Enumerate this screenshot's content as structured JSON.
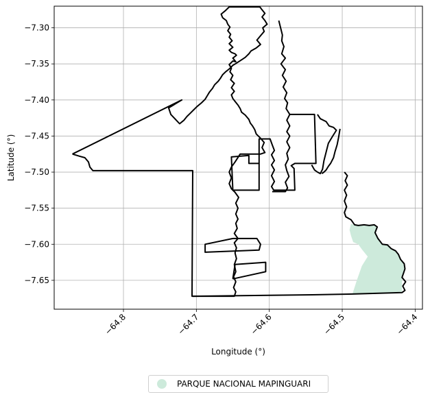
{
  "chart_data": {
    "type": "map",
    "xlabel": "Longitude (°)",
    "ylabel": "Latitude (°)",
    "xlim": [
      -64.895,
      -64.39
    ],
    "ylim": [
      -7.69,
      -7.27
    ],
    "xticks": [
      -64.8,
      -64.7,
      -64.6,
      -64.5,
      -64.4
    ],
    "xtick_labels": [
      "−64.8",
      "−64.7",
      "−64.6",
      "−64.5",
      "−64.4"
    ],
    "yticks": [
      -7.3,
      -7.35,
      -7.4,
      -7.45,
      -7.5,
      -7.55,
      -7.6,
      -7.65
    ],
    "ytick_labels": [
      "−7.30",
      "−7.35",
      "−7.40",
      "−7.45",
      "−7.50",
      "−7.55",
      "−7.60",
      "−7.65"
    ],
    "grid": true,
    "legend_placement": "bottom-center",
    "legend": [
      {
        "label": "PARQUE NACIONAL MAPINGUARI",
        "color": "#cdeadb"
      }
    ],
    "boundary_color": "#000000",
    "fill_color": "#cdeadb",
    "boundary": [
      [
        -64.87,
        -7.475
      ],
      [
        -64.86,
        -7.478
      ],
      [
        -64.853,
        -7.48
      ],
      [
        -64.848,
        -7.486
      ],
      [
        -64.846,
        -7.493
      ],
      [
        -64.842,
        -7.498
      ],
      [
        -64.705,
        -7.498
      ],
      [
        -64.706,
        -7.672
      ],
      [
        -64.648,
        -7.672
      ],
      [
        -64.646,
        -7.666
      ],
      [
        -64.649,
        -7.66
      ],
      [
        -64.646,
        -7.652
      ],
      [
        -64.649,
        -7.645
      ],
      [
        -64.646,
        -7.638
      ],
      [
        -64.648,
        -7.628
      ],
      [
        -64.645,
        -7.62
      ],
      [
        -64.647,
        -7.612
      ],
      [
        -64.645,
        -7.605
      ],
      [
        -64.648,
        -7.598
      ],
      [
        -64.643,
        -7.592
      ],
      [
        -64.648,
        -7.585
      ],
      [
        -64.644,
        -7.578
      ],
      [
        -64.646,
        -7.571
      ],
      [
        -64.643,
        -7.565
      ],
      [
        -64.646,
        -7.558
      ],
      [
        -64.643,
        -7.55
      ],
      [
        -64.646,
        -7.543
      ],
      [
        -64.642,
        -7.535
      ],
      [
        -64.647,
        -7.528
      ],
      [
        -64.652,
        -7.523
      ],
      [
        -64.655,
        -7.516
      ],
      [
        -64.652,
        -7.508
      ],
      [
        -64.655,
        -7.5
      ],
      [
        -64.652,
        -7.493
      ],
      [
        -64.647,
        -7.486
      ],
      [
        -64.64,
        -7.475
      ],
      [
        -64.612,
        -7.475
      ],
      [
        -64.606,
        -7.473
      ],
      [
        -64.61,
        -7.466
      ],
      [
        -64.607,
        -7.459
      ],
      [
        -64.612,
        -7.453
      ],
      [
        -64.615,
        -7.45
      ],
      [
        -64.618,
        -7.447
      ],
      [
        -64.62,
        -7.441
      ],
      [
        -64.623,
        -7.436
      ],
      [
        -64.626,
        -7.432
      ],
      [
        -64.628,
        -7.427
      ],
      [
        -64.633,
        -7.421
      ],
      [
        -64.638,
        -7.417
      ],
      [
        -64.64,
        -7.412
      ],
      [
        -64.643,
        -7.407
      ],
      [
        -64.647,
        -7.402
      ],
      [
        -64.65,
        -7.398
      ],
      [
        -64.652,
        -7.393
      ],
      [
        -64.648,
        -7.388
      ],
      [
        -64.652,
        -7.383
      ],
      [
        -64.648,
        -7.377
      ],
      [
        -64.653,
        -7.372
      ],
      [
        -64.65,
        -7.366
      ],
      [
        -64.654,
        -7.361
      ],
      [
        -64.652,
        -7.356
      ],
      [
        -64.655,
        -7.351
      ],
      [
        -64.65,
        -7.346
      ],
      [
        -64.646,
        -7.347
      ],
      [
        -64.65,
        -7.342
      ],
      [
        -64.645,
        -7.338
      ],
      [
        -64.647,
        -7.336
      ],
      [
        -64.652,
        -7.334
      ],
      [
        -64.655,
        -7.331
      ],
      [
        -64.65,
        -7.327
      ],
      [
        -64.655,
        -7.322
      ],
      [
        -64.651,
        -7.318
      ],
      [
        -64.655,
        -7.313
      ],
      [
        -64.653,
        -7.309
      ],
      [
        -64.657,
        -7.304
      ],
      [
        -64.654,
        -7.299
      ],
      [
        -64.657,
        -7.295
      ],
      [
        -64.659,
        -7.29
      ],
      [
        -64.664,
        -7.286
      ],
      [
        -64.666,
        -7.281
      ],
      [
        -64.66,
        -7.276
      ],
      [
        -64.655,
        -7.271
      ],
      [
        -64.613,
        -7.271
      ],
      [
        -64.61,
        -7.275
      ],
      [
        -64.606,
        -7.28
      ],
      [
        -64.61,
        -7.285
      ],
      [
        -64.606,
        -7.29
      ],
      [
        -64.603,
        -7.295
      ],
      [
        -64.609,
        -7.3
      ],
      [
        -64.607,
        -7.305
      ],
      [
        -64.612,
        -7.311
      ],
      [
        -64.617,
        -7.317
      ],
      [
        -64.612,
        -7.323
      ],
      [
        -64.618,
        -7.328
      ],
      [
        -64.625,
        -7.332
      ],
      [
        -64.628,
        -7.336
      ],
      [
        -64.633,
        -7.341
      ],
      [
        -64.639,
        -7.345
      ],
      [
        -64.645,
        -7.349
      ],
      [
        -64.65,
        -7.352
      ],
      [
        -64.655,
        -7.357
      ],
      [
        -64.66,
        -7.361
      ],
      [
        -64.664,
        -7.365
      ],
      [
        -64.667,
        -7.37
      ],
      [
        -64.67,
        -7.374
      ],
      [
        -64.675,
        -7.379
      ],
      [
        -64.678,
        -7.384
      ],
      [
        -64.682,
        -7.389
      ],
      [
        -64.685,
        -7.394
      ],
      [
        -64.688,
        -7.399
      ],
      [
        -64.693,
        -7.404
      ],
      [
        -64.699,
        -7.409
      ],
      [
        -64.704,
        -7.414
      ],
      [
        -64.708,
        -7.418
      ],
      [
        -64.713,
        -7.423
      ],
      [
        -64.717,
        -7.428
      ],
      [
        -64.723,
        -7.433
      ],
      [
        -64.735,
        -7.42
      ],
      [
        -64.738,
        -7.411
      ],
      [
        -64.72,
        -7.4
      ],
      [
        -64.87,
        -7.475
      ]
    ],
    "inner_lines": [
      [
        [
          -64.587,
          -7.29
        ],
        [
          -64.582,
          -7.31
        ],
        [
          -64.583,
          -7.318
        ],
        [
          -64.58,
          -7.326
        ],
        [
          -64.583,
          -7.336
        ],
        [
          -64.578,
          -7.342
        ],
        [
          -64.584,
          -7.35
        ],
        [
          -64.578,
          -7.358
        ],
        [
          -64.582,
          -7.366
        ],
        [
          -64.577,
          -7.374
        ],
        [
          -64.581,
          -7.382
        ],
        [
          -64.576,
          -7.39
        ],
        [
          -64.579,
          -7.398
        ],
        [
          -64.575,
          -7.404
        ],
        [
          -64.577,
          -7.412
        ],
        [
          -64.572,
          -7.42
        ]
      ],
      [
        [
          -64.572,
          -7.42
        ],
        [
          -64.538,
          -7.42
        ],
        [
          -64.536,
          -7.488
        ],
        [
          -64.565,
          -7.488
        ],
        [
          -64.57,
          -7.491
        ],
        [
          -64.566,
          -7.495
        ],
        [
          -64.565,
          -7.525
        ],
        [
          -64.594,
          -7.525
        ],
        [
          -64.597,
          -7.52
        ],
        [
          -64.593,
          -7.513
        ],
        [
          -64.597,
          -7.505
        ],
        [
          -64.593,
          -7.497
        ],
        [
          -64.597,
          -7.49
        ],
        [
          -64.593,
          -7.484
        ],
        [
          -64.597,
          -7.476
        ],
        [
          -64.593,
          -7.47
        ],
        [
          -64.596,
          -7.462
        ],
        [
          -64.599,
          -7.454
        ],
        [
          -64.614,
          -7.454
        ],
        [
          -64.614,
          -7.525
        ],
        [
          -64.65,
          -7.525
        ],
        [
          -64.652,
          -7.479
        ],
        [
          -64.628,
          -7.477
        ],
        [
          -64.628,
          -7.488
        ],
        [
          -64.614,
          -7.488
        ]
      ],
      [
        [
          -64.572,
          -7.42
        ],
        [
          -64.576,
          -7.428
        ],
        [
          -64.572,
          -7.436
        ],
        [
          -64.576,
          -7.444
        ],
        [
          -64.572,
          -7.45
        ],
        [
          -64.576,
          -7.458
        ],
        [
          -64.572,
          -7.466
        ],
        [
          -64.576,
          -7.474
        ],
        [
          -64.574,
          -7.482
        ],
        [
          -64.578,
          -7.49
        ],
        [
          -64.576,
          -7.498
        ],
        [
          -64.573,
          -7.506
        ],
        [
          -64.578,
          -7.514
        ],
        [
          -64.575,
          -7.522
        ],
        [
          -64.578,
          -7.527
        ],
        [
          -64.596,
          -7.527
        ]
      ],
      [
        [
          -64.534,
          -7.42
        ],
        [
          -64.53,
          -7.426
        ],
        [
          -64.522,
          -7.43
        ],
        [
          -64.518,
          -7.436
        ],
        [
          -64.512,
          -7.438
        ],
        [
          -64.508,
          -7.442
        ],
        [
          -64.513,
          -7.45
        ],
        [
          -64.519,
          -7.46
        ],
        [
          -64.522,
          -7.472
        ],
        [
          -64.525,
          -7.484
        ],
        [
          -64.527,
          -7.496
        ],
        [
          -64.53,
          -7.502
        ],
        [
          -64.534,
          -7.5
        ],
        [
          -64.538,
          -7.497
        ],
        [
          -64.542,
          -7.49
        ]
      ],
      [
        [
          -64.503,
          -7.44
        ],
        [
          -64.505,
          -7.452
        ],
        [
          -64.507,
          -7.462
        ],
        [
          -64.51,
          -7.472
        ],
        [
          -64.512,
          -7.48
        ],
        [
          -64.516,
          -7.488
        ],
        [
          -64.519,
          -7.492
        ],
        [
          -64.522,
          -7.497
        ],
        [
          -64.525,
          -7.5
        ],
        [
          -64.528,
          -7.502
        ]
      ],
      [
        [
          -64.65,
          -7.592
        ],
        [
          -64.617,
          -7.592
        ],
        [
          -64.612,
          -7.6
        ],
        [
          -64.614,
          -7.608
        ],
        [
          -64.688,
          -7.611
        ],
        [
          -64.688,
          -7.6
        ],
        [
          -64.65,
          -7.592
        ]
      ],
      [
        [
          -64.65,
          -7.648
        ],
        [
          -64.605,
          -7.638
        ],
        [
          -64.605,
          -7.625
        ],
        [
          -64.647,
          -7.628
        ],
        [
          -64.65,
          -7.648
        ]
      ]
    ],
    "park_outline": [
      [
        -64.497,
        -7.5
      ],
      [
        -64.493,
        -7.505
      ],
      [
        -64.496,
        -7.512
      ],
      [
        -64.493,
        -7.518
      ],
      [
        -64.497,
        -7.525
      ],
      [
        -64.494,
        -7.532
      ],
      [
        -64.497,
        -7.54
      ],
      [
        -64.494,
        -7.548
      ],
      [
        -64.497,
        -7.556
      ],
      [
        -64.495,
        -7.562
      ],
      [
        -64.488,
        -7.566
      ],
      [
        -64.483,
        -7.573
      ],
      [
        -64.478,
        -7.574
      ],
      [
        -64.47,
        -7.573
      ],
      [
        -64.463,
        -7.574
      ],
      [
        -64.456,
        -7.573
      ],
      [
        -64.452,
        -7.576
      ],
      [
        -64.455,
        -7.584
      ],
      [
        -64.451,
        -7.592
      ],
      [
        -64.445,
        -7.6
      ],
      [
        -64.438,
        -7.601
      ],
      [
        -64.433,
        -7.606
      ],
      [
        -64.427,
        -7.609
      ],
      [
        -64.423,
        -7.614
      ],
      [
        -64.42,
        -7.621
      ],
      [
        -64.415,
        -7.627
      ],
      [
        -64.414,
        -7.634
      ],
      [
        -64.416,
        -7.64
      ],
      [
        -64.418,
        -7.646
      ],
      [
        -64.413,
        -7.652
      ],
      [
        -64.417,
        -7.658
      ],
      [
        -64.414,
        -7.664
      ],
      [
        -64.418,
        -7.667
      ],
      [
        -64.486,
        -7.669
      ],
      [
        -64.541,
        -7.67
      ],
      [
        -64.705,
        -7.672
      ]
    ],
    "park_fill": [
      [
        -64.488,
        -7.572
      ],
      [
        -64.478,
        -7.574
      ],
      [
        -64.47,
        -7.573
      ],
      [
        -64.463,
        -7.574
      ],
      [
        -64.456,
        -7.573
      ],
      [
        -64.452,
        -7.576
      ],
      [
        -64.455,
        -7.584
      ],
      [
        -64.451,
        -7.592
      ],
      [
        -64.445,
        -7.6
      ],
      [
        -64.438,
        -7.601
      ],
      [
        -64.433,
        -7.606
      ],
      [
        -64.427,
        -7.609
      ],
      [
        -64.423,
        -7.614
      ],
      [
        -64.42,
        -7.621
      ],
      [
        -64.415,
        -7.627
      ],
      [
        -64.414,
        -7.634
      ],
      [
        -64.416,
        -7.64
      ],
      [
        -64.418,
        -7.646
      ],
      [
        -64.418,
        -7.666
      ],
      [
        -64.486,
        -7.669
      ],
      [
        -64.48,
        -7.65
      ],
      [
        -64.473,
        -7.63
      ],
      [
        -64.465,
        -7.617
      ],
      [
        -64.473,
        -7.607
      ],
      [
        -64.478,
        -7.6
      ],
      [
        -64.485,
        -7.597
      ],
      [
        -64.488,
        -7.588
      ],
      [
        -64.49,
        -7.58
      ]
    ]
  }
}
